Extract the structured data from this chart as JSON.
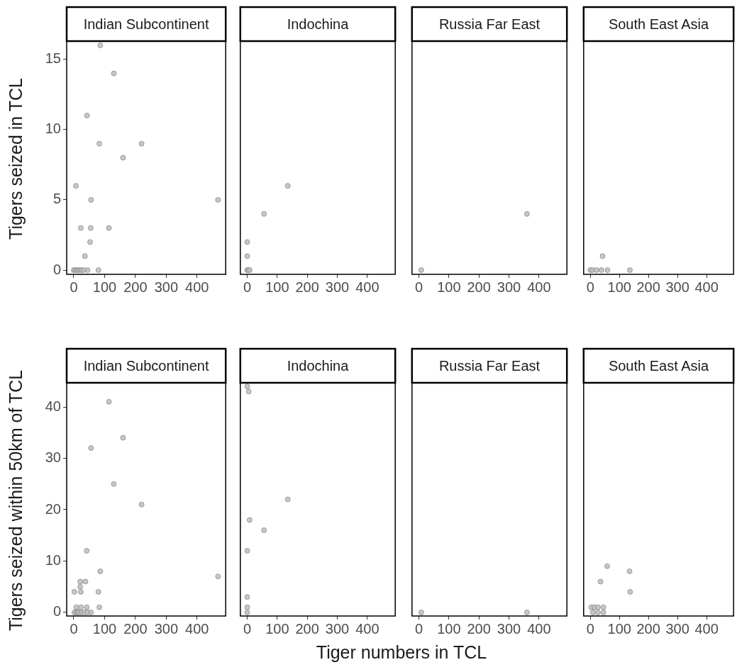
{
  "chart_data": [
    {
      "type": "scatter",
      "title": "Indian Subcontinent",
      "ylabel": "Tigers seized in TCL",
      "color": "#bdbdbd",
      "marker": "circle",
      "xlim": [
        -23,
        493
      ],
      "xticks": [
        0,
        100,
        200,
        300,
        400
      ],
      "ylim": [
        -0.3,
        16.3
      ],
      "yticks": [
        0,
        5,
        10,
        15
      ],
      "x": [
        86,
        130,
        43,
        83,
        220,
        160,
        7,
        56,
        468,
        23,
        55,
        114,
        53,
        36,
        0,
        5,
        10,
        15,
        20,
        25,
        32,
        45,
        80
      ],
      "values": [
        16,
        14,
        11,
        9,
        9,
        8,
        6,
        5,
        5,
        3,
        3,
        3,
        2,
        1,
        0,
        0,
        0,
        0,
        0,
        0,
        0,
        0,
        0
      ]
    },
    {
      "type": "scatter",
      "title": "Indochina",
      "color": "#bdbdbd",
      "marker": "circle",
      "tick_labels": "x",
      "xlim": [
        -23,
        493
      ],
      "xticks": [
        0,
        100,
        200,
        300,
        400
      ],
      "ylim": [
        -0.3,
        16.3
      ],
      "x": [
        135,
        56,
        0,
        0,
        0,
        3,
        8
      ],
      "values": [
        6,
        4,
        2,
        1,
        0,
        0,
        0
      ]
    },
    {
      "type": "scatter",
      "title": "Russia Far East",
      "color": "#bdbdbd",
      "marker": "circle",
      "tick_labels": "x",
      "xlim": [
        -23,
        493
      ],
      "xticks": [
        0,
        100,
        200,
        300,
        400
      ],
      "ylim": [
        -0.3,
        16.3
      ],
      "x": [
        8,
        360
      ],
      "values": [
        0,
        4
      ]
    },
    {
      "type": "scatter",
      "title": "South East Asia",
      "color": "#bdbdbd",
      "marker": "circle",
      "tick_labels": "x",
      "xlim": [
        -23,
        493
      ],
      "xticks": [
        0,
        100,
        200,
        300,
        400
      ],
      "ylim": [
        -0.3,
        16.3
      ],
      "x": [
        42,
        0,
        7,
        21,
        38,
        59,
        136
      ],
      "values": [
        1,
        0,
        0,
        0,
        0,
        0,
        0
      ]
    },
    {
      "type": "scatter",
      "title": "Indian Subcontinent",
      "ylabel": "Tigers seized within 50km of TCL",
      "xlabel": "Tiger numbers in TCL",
      "color": "#bdbdbd",
      "marker": "circle",
      "xlim": [
        -23,
        493
      ],
      "xticks": [
        0,
        100,
        200,
        300,
        400
      ],
      "ylim": [
        -0.7,
        44.7
      ],
      "yticks": [
        0,
        10,
        20,
        30,
        40
      ],
      "x": [
        114,
        160,
        56,
        130,
        220,
        42,
        86,
        468,
        21,
        38,
        21,
        2,
        23,
        80,
        8,
        23,
        42,
        83,
        2,
        8,
        12,
        17,
        25,
        35,
        45,
        56
      ],
      "values": [
        41,
        34,
        32,
        25,
        21,
        12,
        8,
        7,
        6,
        6,
        5,
        4,
        4,
        4,
        1,
        1,
        1,
        1,
        0,
        0,
        0,
        0,
        0,
        0,
        0,
        0
      ]
    },
    {
      "type": "scatter",
      "title": "Indochina",
      "color": "#bdbdbd",
      "marker": "circle",
      "tick_labels": "x",
      "xlim": [
        -23,
        493
      ],
      "xticks": [
        0,
        100,
        200,
        300,
        400
      ],
      "ylim": [
        -0.7,
        44.7
      ],
      "x": [
        0,
        5,
        135,
        8,
        56,
        0,
        0,
        0,
        0
      ],
      "values": [
        44,
        43,
        22,
        18,
        16,
        12,
        3,
        1,
        0
      ]
    },
    {
      "type": "scatter",
      "title": "Russia Far East",
      "color": "#bdbdbd",
      "marker": "circle",
      "tick_labels": "x",
      "xlim": [
        -23,
        493
      ],
      "xticks": [
        0,
        100,
        200,
        300,
        400
      ],
      "ylim": [
        -0.7,
        44.7
      ],
      "x": [
        8,
        360
      ],
      "values": [
        0,
        0
      ]
    },
    {
      "type": "scatter",
      "title": "South East Asia",
      "color": "#bdbdbd",
      "marker": "circle",
      "tick_labels": "x",
      "xlim": [
        -23,
        493
      ],
      "xticks": [
        0,
        100,
        200,
        300,
        400
      ],
      "ylim": [
        -0.7,
        44.7
      ],
      "x": [
        58,
        135,
        35,
        137,
        3,
        14,
        26,
        45,
        9,
        26,
        45
      ],
      "values": [
        9,
        8,
        6,
        4,
        1,
        1,
        1,
        1,
        0,
        0,
        0
      ]
    }
  ]
}
